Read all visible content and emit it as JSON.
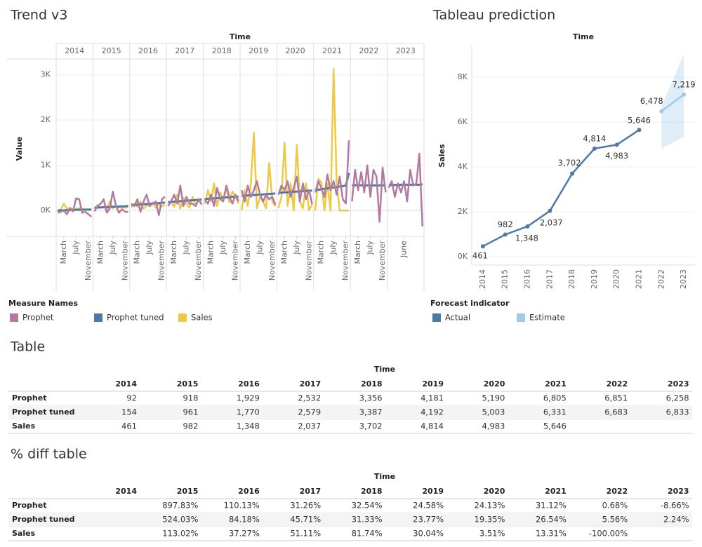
{
  "chart_data": [
    {
      "type": "line",
      "title": "Trend v3",
      "x_header": "Time",
      "ylabel": "Value",
      "years": [
        "2014",
        "2015",
        "2016",
        "2017",
        "2018",
        "2019",
        "2020",
        "2021",
        "2022",
        "2023"
      ],
      "month_ticks": [
        [
          {
            "value": 3,
            "label": "March"
          },
          {
            "value": 7,
            "label": "July"
          },
          {
            "value": 11,
            "label": "November"
          }
        ],
        [
          {
            "value": 3,
            "label": "March"
          },
          {
            "value": 7,
            "label": "July"
          },
          {
            "value": 11,
            "label": "November"
          }
        ],
        [
          {
            "value": 3,
            "label": "March"
          },
          {
            "value": 7,
            "label": "July"
          },
          {
            "value": 11,
            "label": "November"
          }
        ],
        [
          {
            "value": 3,
            "label": "March"
          },
          {
            "value": 7,
            "label": "July"
          },
          {
            "value": 11,
            "label": "November"
          }
        ],
        [
          {
            "value": 3,
            "label": "March"
          },
          {
            "value": 7,
            "label": "July"
          },
          {
            "value": 11,
            "label": "November"
          }
        ],
        [
          {
            "value": 3,
            "label": "March"
          },
          {
            "value": 7,
            "label": "July"
          },
          {
            "value": 11,
            "label": "November"
          }
        ],
        [
          {
            "value": 3,
            "label": "March"
          },
          {
            "value": 7,
            "label": "July"
          },
          {
            "value": 11,
            "label": "November"
          }
        ],
        [
          {
            "value": 3,
            "label": "March"
          },
          {
            "value": 7,
            "label": "July"
          },
          {
            "value": 11,
            "label": "November"
          }
        ],
        [
          {
            "value": 3,
            "label": "March"
          },
          {
            "value": 7,
            "label": "July"
          },
          {
            "value": 11,
            "label": "November"
          }
        ],
        [
          {
            "value": 6,
            "label": "June"
          }
        ]
      ],
      "ylim": [
        -570,
        3350
      ],
      "yticks": [
        {
          "value": 0,
          "label": "0K"
        },
        {
          "value": 1000,
          "label": "1K"
        },
        {
          "value": 2000,
          "label": "2K"
        },
        {
          "value": 3000,
          "label": "3K"
        }
      ],
      "grid": true,
      "legend_title": "Measure Names",
      "series": [
        {
          "name": "Prophet",
          "color": "#b07aa1",
          "values": [
            [
              -50,
              -30,
              0,
              -80,
              50,
              -20,
              270,
              250,
              -50,
              -30,
              -80,
              -138
            ],
            [
              -20,
              100,
              150,
              250,
              -50,
              50,
              420,
              100,
              -50,
              30,
              -30,
              -32
            ],
            [
              150,
              100,
              250,
              -30,
              200,
              350,
              100,
              150,
              200,
              -100,
              250,
              309
            ],
            [
              100,
              200,
              350,
              150,
              550,
              100,
              300,
              150,
              150,
              100,
              250,
              132
            ],
            [
              250,
              150,
              350,
              100,
              500,
              250,
              200,
              550,
              300,
              150,
              350,
              206
            ],
            [
              450,
              200,
              550,
              300,
              450,
              650,
              350,
              200,
              350,
              250,
              300,
              131
            ],
            [
              350,
              550,
              450,
              650,
              300,
              500,
              750,
              200,
              600,
              250,
              450,
              140
            ],
            [
              400,
              650,
              500,
              300,
              800,
              450,
              650,
              350,
              750,
              250,
              155,
              1550
            ],
            [
              200,
              900,
              450,
              850,
              400,
              1000,
              300,
              900,
              750,
              -250,
              950,
              401
            ],
            [
              500,
              650,
              300,
              600,
              400,
              650,
              200,
              900,
              550,
              600,
              1258,
              -350
            ]
          ]
        },
        {
          "name": "Prophet tuned",
          "color": "#4e79a7",
          "values": [
            [
              0,
              3,
              5,
              8,
              10,
              13,
              15,
              17,
              19,
              20,
              21,
              23
            ],
            [
              60,
              65,
              70,
              72,
              75,
              78,
              82,
              85,
              88,
              92,
              95,
              99
            ],
            [
              120,
              125,
              130,
              135,
              140,
              145,
              150,
              155,
              160,
              165,
              170,
              175
            ],
            [
              187,
              192,
              197,
              202,
              207,
              212,
              217,
              222,
              227,
              232,
              237,
              247
            ],
            [
              255,
              260,
              265,
              270,
              275,
              280,
              285,
              290,
              295,
              300,
              305,
              307
            ],
            [
              322,
              327,
              332,
              337,
              342,
              347,
              352,
              357,
              362,
              367,
              372,
              375
            ],
            [
              390,
              395,
              400,
              405,
              410,
              415,
              420,
              425,
              430,
              435,
              440,
              438
            ],
            [
              450,
              460,
              470,
              480,
              490,
              500,
              510,
              520,
              530,
              540,
              550,
              831
            ],
            [
              560,
              560,
              560,
              560,
              555,
              555,
              555,
              555,
              555,
              555,
              555,
              558
            ],
            [
              565,
              565,
              565,
              565,
              570,
              570,
              570,
              570,
              570,
              570,
              570,
              583
            ]
          ]
        },
        {
          "name": "Sales",
          "color": "#edc948",
          "values": [
            [
              10,
              20,
              150,
              30,
              60,
              20,
              40,
              50,
              30,
              20,
              10,
              21
            ],
            [
              40,
              120,
              60,
              90,
              30,
              200,
              50,
              100,
              70,
              80,
              60,
              82
            ],
            [
              60,
              150,
              80,
              200,
              40,
              120,
              100,
              180,
              60,
              140,
              90,
              128
            ],
            [
              100,
              200,
              80,
              350,
              40,
              280,
              150,
              60,
              300,
              120,
              217,
              140
            ],
            [
              150,
              450,
              200,
              600,
              100,
              400,
              250,
              500,
              180,
              420,
              300,
              152
            ],
            [
              0,
              450,
              100,
              600,
              1720,
              50,
              300,
              200,
              50,
              1050,
              200,
              94
            ],
            [
              50,
              300,
              1500,
              100,
              600,
              0,
              1450,
              200,
              50,
              600,
              0,
              133
            ],
            [
              0,
              700,
              620,
              0,
              600,
              0,
              3130,
              596,
              0,
              0,
              0,
              0
            ],
            [
              null,
              null,
              null,
              null,
              null,
              null,
              null,
              null,
              null,
              null,
              null,
              null
            ],
            [
              null,
              null,
              null,
              null,
              null,
              null,
              null,
              null,
              null,
              null,
              null,
              null
            ]
          ]
        }
      ]
    },
    {
      "type": "line",
      "title": "Tableau prediction",
      "x_header": "Time",
      "ylabel": "Sales",
      "categories": [
        "2014",
        "2015",
        "2016",
        "2017",
        "2018",
        "2019",
        "2020",
        "2021",
        "2022",
        "2023"
      ],
      "ylim": [
        -375,
        9400
      ],
      "yticks": [
        {
          "value": 0,
          "label": "0K"
        },
        {
          "value": 2000,
          "label": "2K"
        },
        {
          "value": 4000,
          "label": "4K"
        },
        {
          "value": 6000,
          "label": "6K"
        },
        {
          "value": 8000,
          "label": "8K"
        }
      ],
      "grid": true,
      "legend_title": "Forecast indicator",
      "series": [
        {
          "name": "Actual",
          "color": "#4e79a7",
          "values": [
            461,
            982,
            1348,
            2037,
            3702,
            4814,
            4983,
            5646,
            null,
            null
          ],
          "value_labels": [
            "461",
            "982",
            "1,348",
            "2,037",
            "3,702",
            "4,814",
            "4,983",
            "5,646",
            null,
            null
          ]
        },
        {
          "name": "Estimate",
          "color": "#a0cbe8",
          "values": [
            null,
            null,
            null,
            null,
            null,
            null,
            null,
            null,
            6478,
            7219
          ],
          "value_labels": [
            null,
            null,
            null,
            null,
            null,
            null,
            null,
            null,
            "6,478",
            "7,219"
          ],
          "lower": [
            null,
            null,
            null,
            null,
            null,
            null,
            null,
            null,
            4800,
            5350
          ],
          "upper": [
            null,
            null,
            null,
            null,
            null,
            null,
            null,
            null,
            6700,
            9000
          ]
        }
      ]
    }
  ],
  "tables": [
    {
      "title": "Table",
      "header": "Time",
      "columns": [
        "2014",
        "2015",
        "2016",
        "2017",
        "2018",
        "2019",
        "2020",
        "2021",
        "2022",
        "2023"
      ],
      "rows": [
        {
          "label": "Prophet",
          "cells": [
            "92",
            "918",
            "1,929",
            "2,532",
            "3,356",
            "4,181",
            "5,190",
            "6,805",
            "6,851",
            "6,258"
          ]
        },
        {
          "label": "Prophet tuned",
          "cells": [
            "154",
            "961",
            "1,770",
            "2,579",
            "3,387",
            "4,192",
            "5,003",
            "6,331",
            "6,683",
            "6,833"
          ]
        },
        {
          "label": "Sales",
          "cells": [
            "461",
            "982",
            "1,348",
            "2,037",
            "3,702",
            "4,814",
            "4,983",
            "5,646",
            null,
            null
          ]
        }
      ]
    },
    {
      "title": "% diff table",
      "header": "Time",
      "columns": [
        "2014",
        "2015",
        "2016",
        "2017",
        "2018",
        "2019",
        "2020",
        "2021",
        "2022",
        "2023"
      ],
      "rows": [
        {
          "label": "Prophet",
          "cells": [
            null,
            "897.83%",
            "110.13%",
            "31.26%",
            "32.54%",
            "24.58%",
            "24.13%",
            "31.12%",
            "0.68%",
            "-8.66%"
          ]
        },
        {
          "label": "Prophet tuned",
          "cells": [
            null,
            "524.03%",
            "84.18%",
            "45.71%",
            "31.33%",
            "23.77%",
            "19.35%",
            "26.54%",
            "5.56%",
            "2.24%"
          ]
        },
        {
          "label": "Sales",
          "cells": [
            null,
            "113.02%",
            "37.27%",
            "51.11%",
            "81.74%",
            "30.04%",
            "3.51%",
            "13.31%",
            "-100.00%",
            null
          ]
        }
      ]
    }
  ]
}
